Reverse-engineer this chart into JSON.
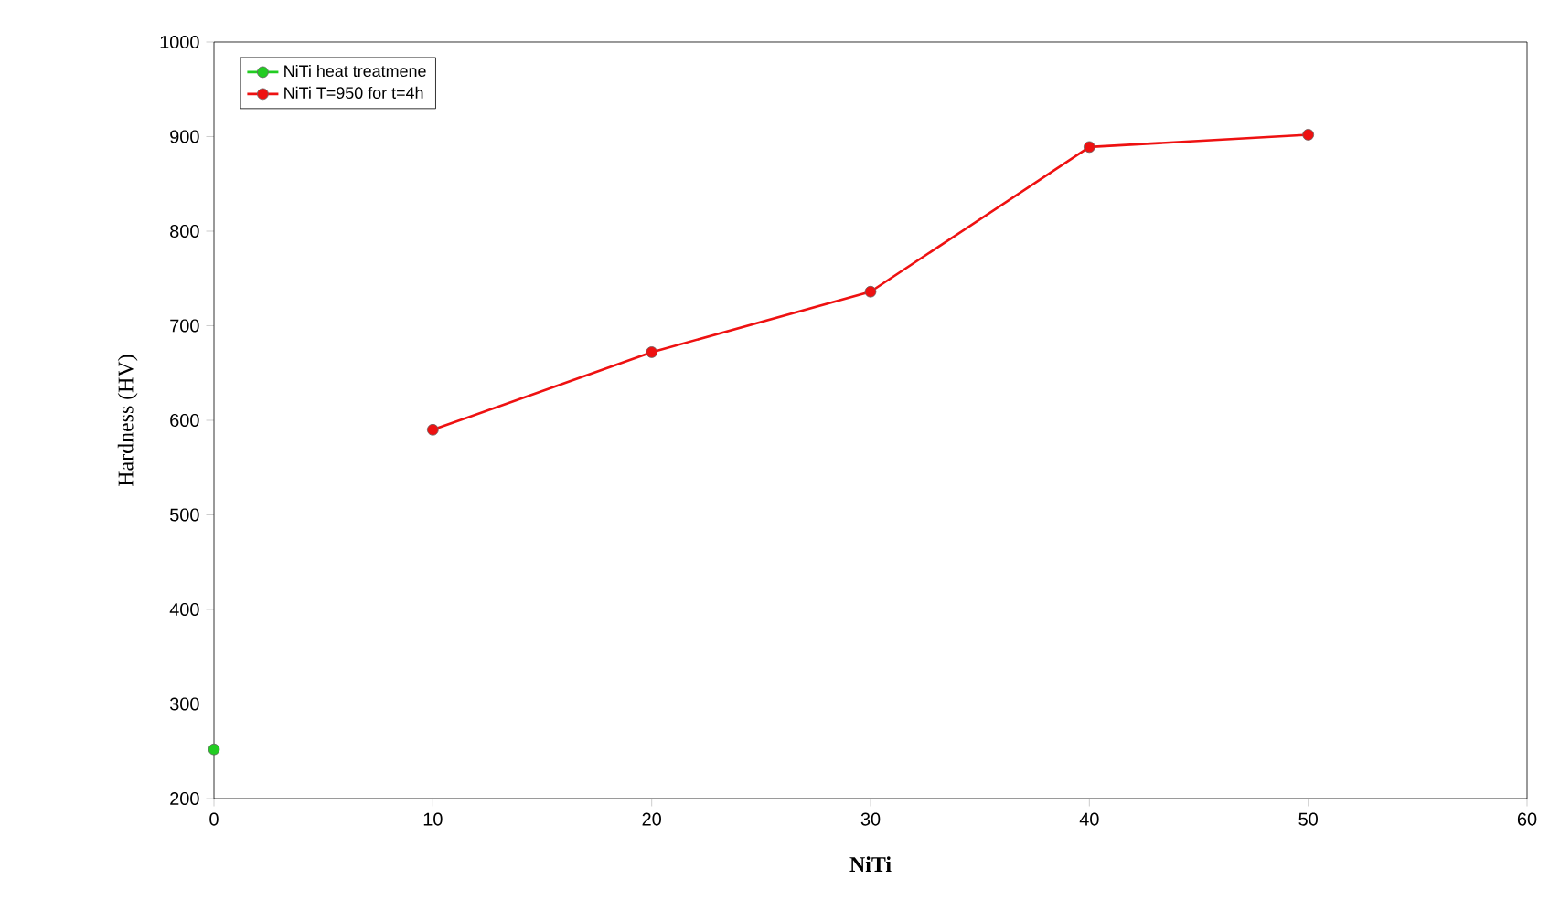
{
  "chart_data": {
    "type": "line",
    "xlabel": "NiTi",
    "ylabel": "Hardness (HV)",
    "series": [
      {
        "name": "NiTi heat treatmene",
        "color": "#22cc22",
        "x": [
          0
        ],
        "values": [
          252
        ]
      },
      {
        "name": "NiTi T=950 for t=4h",
        "color": "#ee1111",
        "x": [
          10,
          20,
          30,
          40,
          50
        ],
        "values": [
          590,
          672,
          736,
          889,
          902
        ]
      }
    ],
    "xlim": [
      0,
      60
    ],
    "xticks": [
      0,
      10,
      20,
      30,
      40,
      50,
      60
    ],
    "ylim": [
      200,
      1000
    ],
    "yticks": [
      200,
      300,
      400,
      500,
      600,
      700,
      800,
      900,
      1000
    ],
    "legend": "top left",
    "marker": "circle",
    "line_style": "solid",
    "grid": false
  }
}
